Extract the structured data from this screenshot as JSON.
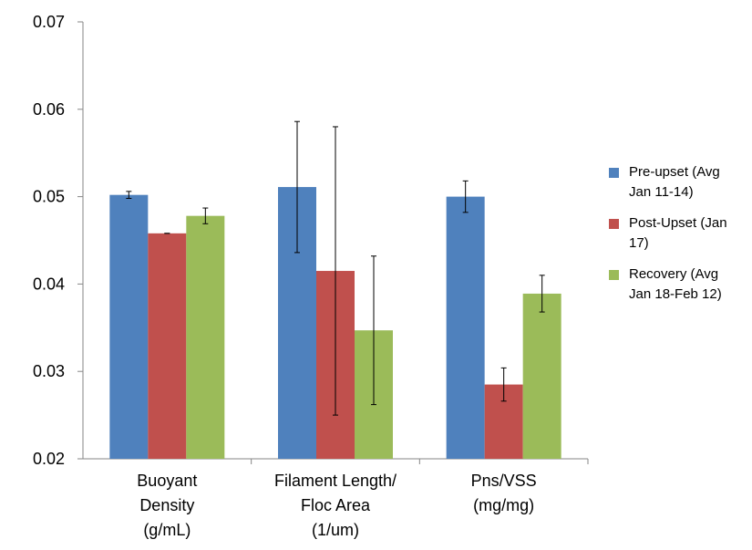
{
  "chart_data": {
    "type": "bar",
    "title": "",
    "xlabel": "",
    "ylabel": "",
    "ylim": [
      0.02,
      0.07
    ],
    "yticks": [
      "0.02",
      "0.03",
      "0.04",
      "0.05",
      "0.06",
      "0.07"
    ],
    "grid": false,
    "legend_position": "right",
    "categories": [
      [
        "Buoyant",
        "Density",
        "(g/mL)"
      ],
      [
        "Filament Length/",
        "Floc Area",
        "(1/um)"
      ],
      [
        "Pns/VSS",
        "(mg/mg)"
      ]
    ],
    "series": [
      {
        "name": "Pre-upset (Avg Jan 11-14)",
        "legend_lines": [
          "Pre-upset (Avg",
          "Jan 11-14)"
        ],
        "color": "#4f81bd",
        "values": [
          0.0502,
          0.0511,
          0.05
        ],
        "errors": [
          0.0004,
          0.0075,
          0.0018
        ]
      },
      {
        "name": "Post-Upset (Jan 17)",
        "legend_lines": [
          "Post-Upset (Jan",
          "17)"
        ],
        "color": "#c0504d",
        "values": [
          0.0458,
          0.0415,
          0.0285
        ],
        "errors": [
          0.0,
          0.0165,
          0.0019
        ]
      },
      {
        "name": "Recovery (Avg Jan 18-Feb 12)",
        "legend_lines": [
          "Recovery (Avg",
          "Jan 18-Feb 12)"
        ],
        "color": "#9bbb59",
        "values": [
          0.0478,
          0.0347,
          0.0389
        ],
        "errors": [
          0.0009,
          0.0085,
          0.0021
        ]
      }
    ]
  }
}
